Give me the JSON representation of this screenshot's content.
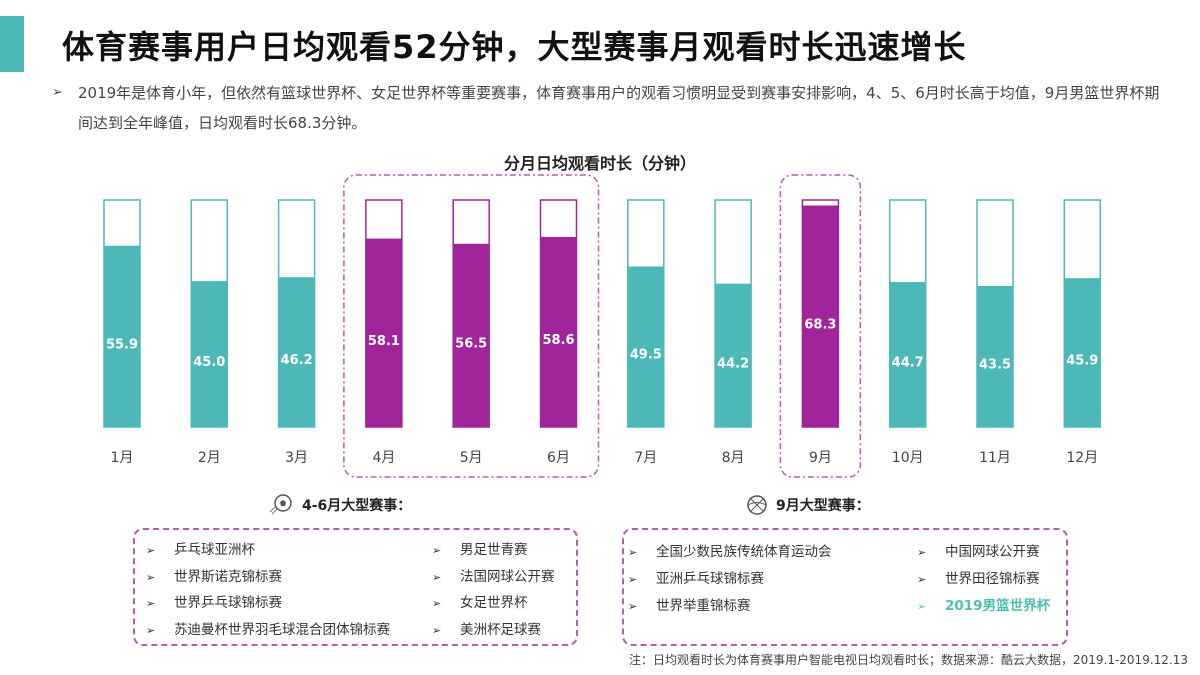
{
  "header": {
    "title": "体育赛事用户日均观看52分钟，大型赛事月观看时长迅速增长",
    "accent_color": "#4db8b8"
  },
  "description": "2019年是体育小年，但依然有篮球世界杯、女足世界杯等重要赛事，体育赛事用户的观看习惯明显受到赛事安排影响，4、5、6月时长高于均值，9月男篮世界杯期间达到全年峰值，日均观看时长68.3分钟。",
  "chart_data": {
    "type": "bar",
    "title": "分月日均观看时长（分钟）",
    "categories": [
      "1月",
      "2月",
      "3月",
      "4月",
      "5月",
      "6月",
      "7月",
      "8月",
      "9月",
      "10月",
      "11月",
      "12月"
    ],
    "values": [
      55.9,
      45.0,
      46.2,
      58.1,
      56.5,
      58.6,
      49.5,
      44.2,
      68.3,
      44.7,
      43.5,
      45.9
    ],
    "ylim": [
      0,
      70
    ],
    "highlighted": [
      "4月",
      "5月",
      "6月",
      "9月"
    ],
    "colors": {
      "normal": "#4db8b8",
      "highlight": "#a0259a",
      "outline": "#4db8b8",
      "highlight_outline": "#a0259a"
    }
  },
  "events_apr_jun": {
    "heading": "4-6月大型赛事：",
    "icon": "soccer-ball-icon",
    "items": [
      "乒乓球亚洲杯",
      "世界斯诺克锦标赛",
      "世界乒乓球锦标赛",
      "苏迪曼杯世界羽毛球混合团体锦标赛",
      "男足世青赛",
      "法国网球公开赛",
      "女足世界杯",
      "美洲杯足球赛"
    ]
  },
  "events_sep": {
    "heading": "9月大型赛事：",
    "icon": "basketball-icon",
    "items": [
      "全国少数民族传统体育运动会",
      "亚洲乒乓球锦标赛",
      "世界举重锦标赛",
      "中国网球公开赛",
      "世界田径锦标赛",
      "2019男篮世界杯"
    ],
    "highlight_color": "#4cc0b0"
  },
  "note": "注：日均观看时长为体育赛事用户智能电视日均观看时长；数据来源：酷云大数据，2019.1-2019.12.13"
}
